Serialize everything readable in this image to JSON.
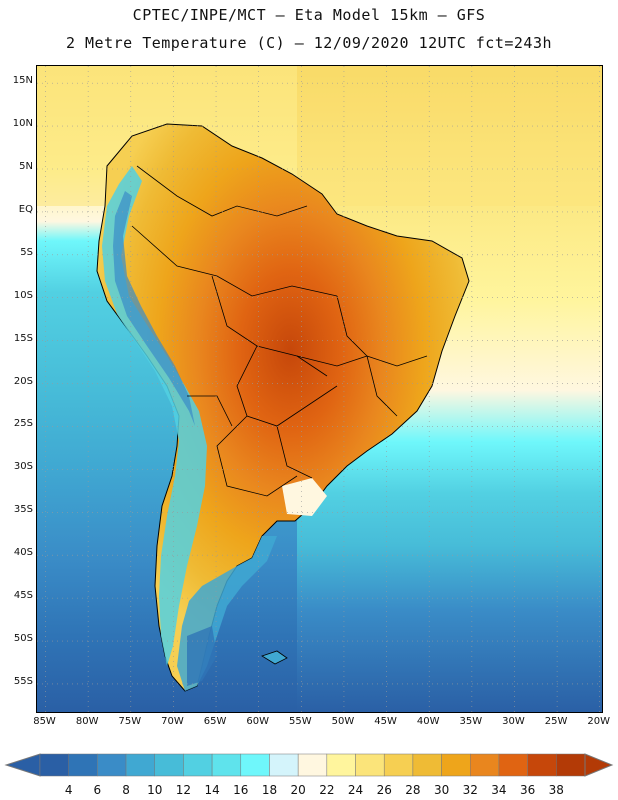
{
  "header": {
    "line1": "CPTEC/INPE/MCT –  Eta Model 15km – GFS",
    "line2": "2 Metre Temperature (C) – 12/09/2020 12UTC fct=243h"
  },
  "map": {
    "lat_labels": [
      "15N",
      "10N",
      "5N",
      "EQ",
      "5S",
      "10S",
      "15S",
      "20S",
      "25S",
      "30S",
      "35S",
      "40S",
      "45S",
      "50S",
      "55S"
    ],
    "lon_labels": [
      "85W",
      "80W",
      "75W",
      "70W",
      "65W",
      "60W",
      "55W",
      "50W",
      "45W",
      "40W",
      "35W",
      "30W",
      "25W",
      "20W"
    ],
    "lat_range": [
      17,
      -58.5
    ],
    "lon_range": [
      -86,
      -19.5
    ]
  },
  "colorbar": {
    "labels": [
      "4",
      "6",
      "8",
      "10",
      "12",
      "14",
      "16",
      "18",
      "20",
      "22",
      "24",
      "26",
      "28",
      "30",
      "32",
      "34",
      "36",
      "38"
    ],
    "colors": [
      "#2a5fa5",
      "#2f74b6",
      "#3a8cc7",
      "#40a8d2",
      "#47bcd8",
      "#52d0e2",
      "#5fe3ec",
      "#6ff7fb",
      "#d4f4fb",
      "#fff7e0",
      "#fff59d",
      "#fbe47a",
      "#f6cf52",
      "#efbb35",
      "#eea51b",
      "#e9861e",
      "#e06412",
      "#c6470a",
      "#b33a06"
    ],
    "low_arrow_color": "#2a5fa5",
    "high_arrow_color": "#b33a06"
  }
}
